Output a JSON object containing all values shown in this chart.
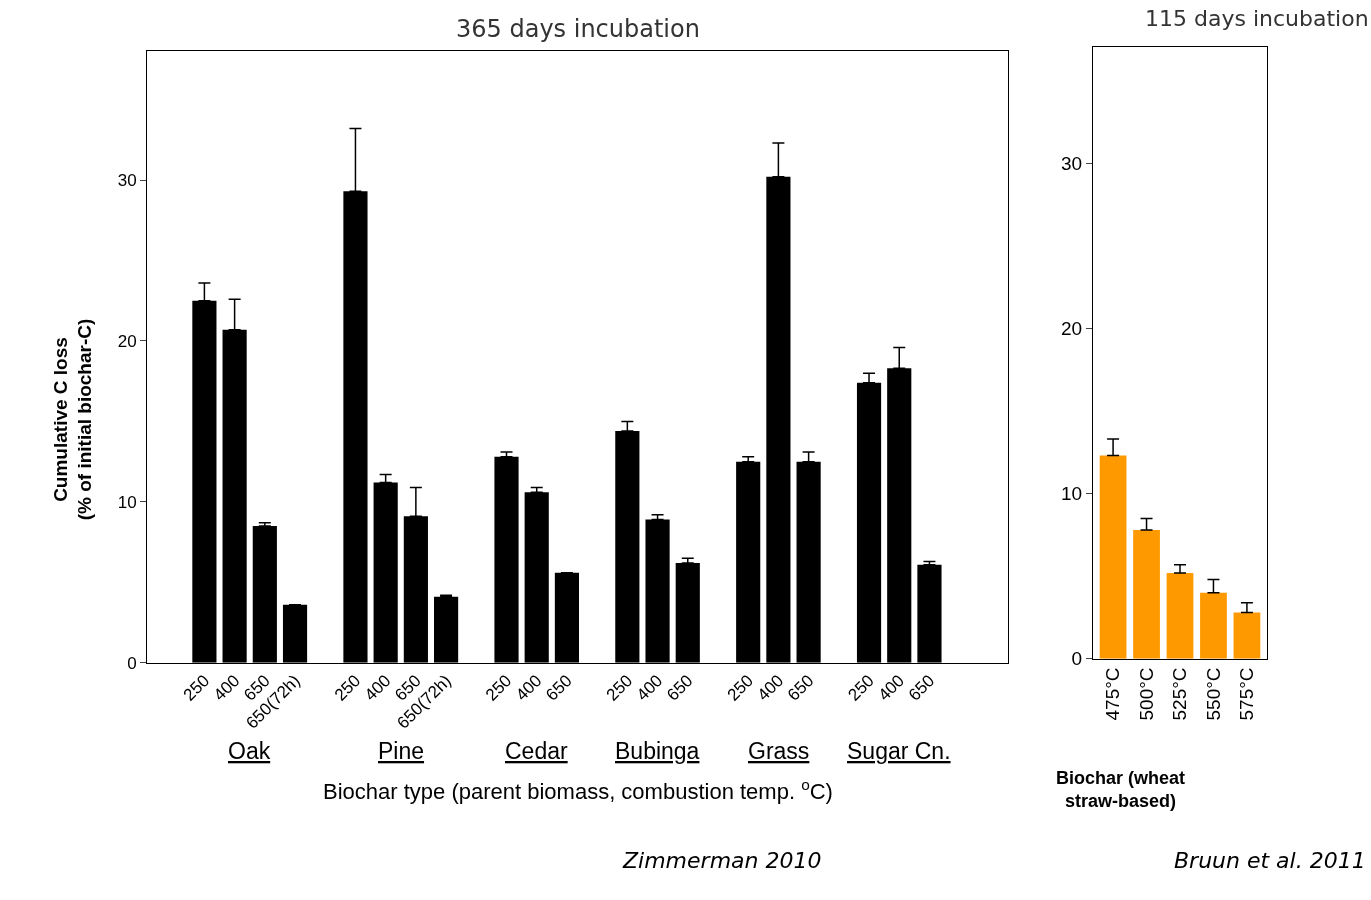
{
  "chart_data": [
    {
      "type": "bar",
      "title": "365 days incubation",
      "xlabel": "Biochar type (parent biomass, combustion temp. $^{o}$C)",
      "ylabel": "Cumulative C loss\n(% of initial biochar-C)",
      "categories": [
        "250",
        "400",
        "650",
        "650(72h)",
        null,
        "250",
        "400",
        "650",
        "650(72h)",
        null,
        "250",
        "400",
        "650",
        null,
        "250",
        "400",
        "650",
        null,
        "250",
        "400",
        "650",
        null,
        "250",
        "400",
        "650"
      ],
      "values": [
        22.5,
        20.7,
        8.5,
        3.6,
        null,
        29.3,
        11.2,
        9.1,
        4.1,
        null,
        12.8,
        10.6,
        5.6,
        null,
        14.4,
        8.9,
        6.2,
        null,
        12.5,
        30.2,
        12.5,
        null,
        17.4,
        18.3,
        6.1
      ],
      "errors": [
        [
          22.5,
          23.6
        ],
        [
          20.7,
          22.6
        ],
        [
          8.5,
          8.7
        ],
        null,
        null,
        [
          29.3,
          33.2
        ],
        [
          11.2,
          11.7
        ],
        [
          9.1,
          10.9
        ],
        [
          4.1,
          4.2
        ],
        null,
        [
          12.8,
          13.1
        ],
        [
          10.6,
          10.9
        ],
        null,
        null,
        [
          14.4,
          15.0
        ],
        [
          8.9,
          9.2
        ],
        [
          6.2,
          6.5
        ],
        null,
        [
          12.5,
          12.8
        ],
        [
          30.2,
          32.3
        ],
        [
          12.5,
          13.1
        ],
        null,
        [
          17.4,
          18.0
        ],
        [
          18.3,
          19.6
        ],
        [
          6.1,
          6.3
        ]
      ],
      "color": "#000000",
      "ylim": [
        0,
        38
      ],
      "yticks": [
        0,
        10,
        20,
        30
      ],
      "annotations": [
        "Oak",
        "Pine",
        "Cedar",
        "Bubinga",
        "Grass",
        "Sugar Cn.",
        "Zimmerman 2010"
      ]
    },
    {
      "type": "bar",
      "title": "115 days incubation",
      "xlabel": "Biochar (wheat straw-based)",
      "categories": [
        "475°C",
        "500°C",
        "525°C",
        "550°C",
        "575°C"
      ],
      "values": [
        12.3,
        7.8,
        5.2,
        4.0,
        2.8
      ],
      "errors": [
        [
          12.3,
          13.3
        ],
        [
          7.8,
          8.5
        ],
        [
          5.2,
          5.7
        ],
        [
          4.0,
          4.8
        ],
        [
          2.8,
          3.4
        ]
      ],
      "color": "#ff9900",
      "ylim": [
        0,
        37
      ],
      "yticks": [
        0,
        10,
        20,
        30
      ],
      "annotations": [
        "Bruun et al. 2011"
      ]
    }
  ]
}
